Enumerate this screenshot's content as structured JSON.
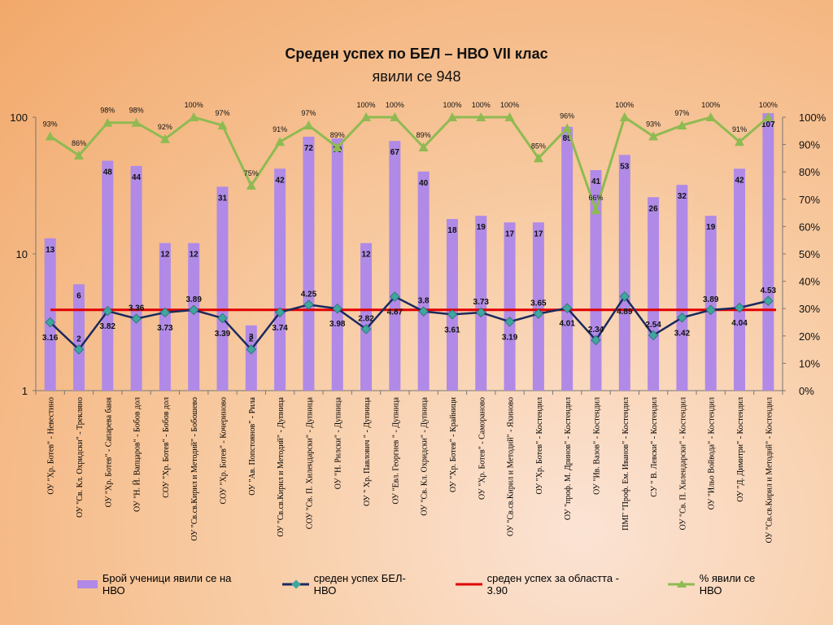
{
  "chart_data": {
    "type": "bar",
    "title": "Среден успех по БЕЛ – НВО VII клас",
    "subtitle": "явили се 948",
    "categories": [
      "ОУ \"Хр. Ботев\" - Невестино",
      "ОУ \"Св. Кл. Охридски\" - Трекляно",
      "ОУ \"Хр. Ботев\" - Сапарева баня",
      "ОУ \"Н. Й. Вапцаров\" - Бобов дол",
      "СОУ \"Хр. Ботев\" - Бобов дол",
      "ОУ \"Св.св.Кирил и Методий\" - Бобошево",
      "СОУ \"Хр. Ботев\" - Кочериново",
      "ОУ \"Ав. Попстоянов\" - Рила",
      "ОУ \"Св.св.Кирил и Методий\" - Дупница",
      "СОУ \"Св. П. Хилендарски\" - Дупница",
      "ОУ \"Н. Рилски\" - Дупница",
      "ОУ \" Хр. Павлович \" - Дупница",
      "ОУ \"Евл. Георгиев \" - Дупница",
      "ОУ \"Св. Кл. Охридски\" - Дупница",
      "ОУ \"Хр. Ботев\" - Крайници",
      "ОУ \"Хр. Ботев\" - Самораново",
      "ОУ \"Св.св.Кирил и Методий\" - Яхиново",
      "ОУ \"Хр. Ботев\" - Костендил",
      "ОУ \"проф. М. Дринов\" - Костендил",
      "ОУ \"Ив. Вазов\" - Костендил",
      "ПМГ \"Проф. Ем. Иванов\" - Костендил",
      "СУ \" В. Левски\" - Костендил",
      "ОУ \"Св. П. Хилендарски\" - Костендил",
      "ОУ \"Ильо Войвода\" - Костендил",
      "ОУ \"Д. Димитри\" - Костендил",
      "ОУ \"Св.св.Кирил и Методий\" - Костендил"
    ],
    "series": [
      {
        "name": "Брой ученици явили се на НВО",
        "type": "bar",
        "color": "#b08ae6",
        "values": [
          13,
          6,
          48,
          44,
          12,
          12,
          31,
          3,
          42,
          72,
          70,
          12,
          67,
          40,
          18,
          19,
          17,
          17,
          85,
          41,
          53,
          26,
          32,
          19,
          42,
          107
        ]
      },
      {
        "name": "среден успех  БЕЛ-НВО",
        "type": "line",
        "color": "#1a2a5e",
        "marker_color": "#3fa6a0",
        "values": [
          3.16,
          2,
          3.82,
          3.36,
          3.73,
          3.89,
          3.39,
          2,
          3.74,
          4.25,
          3.98,
          2.82,
          4.87,
          3.8,
          3.61,
          3.73,
          3.19,
          3.65,
          4.01,
          2.34,
          4.89,
          2.54,
          3.42,
          3.89,
          4.04,
          4.53
        ]
      },
      {
        "name": "среден успех за областта - 3.90",
        "type": "line",
        "color": "#e00000",
        "value": 3.9
      },
      {
        "name": "% явили се НВО",
        "type": "line",
        "axis": "right",
        "color": "#8fba52",
        "values": [
          93,
          86,
          98,
          98,
          92,
          100,
          97,
          75,
          91,
          97,
          89,
          100,
          100,
          89,
          100,
          100,
          100,
          85,
          96,
          66,
          100,
          93,
          97,
          100,
          91,
          100
        ],
        "labels": [
          "93%",
          "86%",
          "98%",
          "98%",
          "92%",
          "100%",
          "97%",
          "75%",
          "91%",
          "97%",
          "89%",
          "100%",
          "100%",
          "89%",
          "100%",
          "100%",
          "100%",
          "85%",
          "96%",
          "66%",
          "100%",
          "93%",
          "97%",
          "100%",
          "91%",
          "100%"
        ]
      }
    ],
    "left_axis": {
      "scale": "log",
      "range": [
        1,
        100
      ],
      "ticks": [
        "1",
        "10",
        "100"
      ]
    },
    "right_axis": {
      "range": [
        0,
        100
      ],
      "ticks": [
        "0%",
        "10%",
        "20%",
        "30%",
        "40%",
        "50%",
        "60%",
        "70%",
        "80%",
        "90%",
        "100%"
      ]
    },
    "grid": false,
    "legend_position": "bottom"
  }
}
